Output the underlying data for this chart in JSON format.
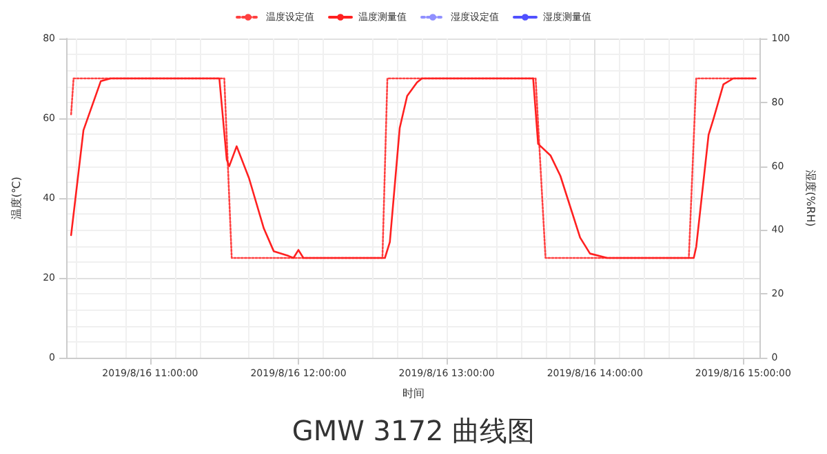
{
  "chart_data": {
    "type": "line",
    "title": "GMW 3172 曲线图",
    "xlabel": "时间",
    "ylabel": "温度(℃)",
    "y2label": "湿度(%RH)",
    "xlim": [
      "2019-08-16T10:26",
      "2019-08-16T15:07"
    ],
    "xticks": [
      {
        "value": "2019-08-16T11:00",
        "label": "2019/8/16 11:00:00"
      },
      {
        "value": "2019-08-16T12:00",
        "label": "2019/8/16 12:00:00"
      },
      {
        "value": "2019-08-16T13:00",
        "label": "2019/8/16 13:00:00"
      },
      {
        "value": "2019-08-16T14:00",
        "label": "2019/8/16 14:00:00"
      },
      {
        "value": "2019-08-16T15:00",
        "label": "2019/8/16 15:00:00"
      }
    ],
    "ylim": [
      0,
      80
    ],
    "yticks": [
      0,
      20,
      40,
      60,
      80
    ],
    "y2lim": [
      0,
      100
    ],
    "y2ticks": [
      0,
      20,
      40,
      60,
      80,
      100
    ],
    "grid": true,
    "legend": "top",
    "marker": "none",
    "series": [
      {
        "name": "温度设定值",
        "color": "#ff4040",
        "line_style": "dotted",
        "x": [
          "2019-08-16T10:28",
          "2019-08-16T10:29",
          "2019-08-16T11:30",
          "2019-08-16T11:33",
          "2019-08-16T12:34",
          "2019-08-16T12:36",
          "2019-08-16T13:36",
          "2019-08-16T13:40",
          "2019-08-16T14:38",
          "2019-08-16T14:41",
          "2019-08-16T15:05"
        ],
        "values": [
          61,
          70,
          70,
          25,
          25,
          70,
          70,
          25,
          25,
          70,
          70
        ]
      },
      {
        "name": "温度测量值",
        "color": "#ff2020",
        "line_style": "solid",
        "x": [
          "2019-08-16T10:28",
          "2019-08-16T10:33",
          "2019-08-16T10:40",
          "2019-08-16T10:44",
          "2019-08-16T11:28",
          "2019-08-16T11:31",
          "2019-08-16T11:32",
          "2019-08-16T11:35",
          "2019-08-16T11:40",
          "2019-08-16T11:46",
          "2019-08-16T11:50",
          "2019-08-16T11:56",
          "2019-08-16T11:58",
          "2019-08-16T12:00",
          "2019-08-16T12:02",
          "2019-08-16T12:35",
          "2019-08-16T12:37",
          "2019-08-16T12:41",
          "2019-08-16T12:44",
          "2019-08-16T12:48",
          "2019-08-16T12:50",
          "2019-08-16T13:35",
          "2019-08-16T13:37",
          "2019-08-16T13:42",
          "2019-08-16T13:46",
          "2019-08-16T13:54",
          "2019-08-16T13:58",
          "2019-08-16T14:05",
          "2019-08-16T14:40",
          "2019-08-16T14:41",
          "2019-08-16T14:46",
          "2019-08-16T14:48",
          "2019-08-16T14:52",
          "2019-08-16T14:56",
          "2019-08-16T15:05"
        ],
        "values": [
          30.7,
          57,
          69.3,
          70,
          70,
          49.6,
          48,
          53,
          45,
          32.4,
          26.7,
          25.5,
          25,
          27,
          25,
          25,
          29,
          57.6,
          65.6,
          69,
          70,
          70,
          53.6,
          50.7,
          45.6,
          30.1,
          26.1,
          25,
          25,
          27.8,
          55.9,
          59.9,
          68.5,
          70,
          70
        ]
      },
      {
        "name": "湿度设定值",
        "color": "#9090ff",
        "line_style": "dotted"
      },
      {
        "name": "湿度测量值",
        "color": "#5050ff",
        "line_style": "solid"
      }
    ]
  }
}
